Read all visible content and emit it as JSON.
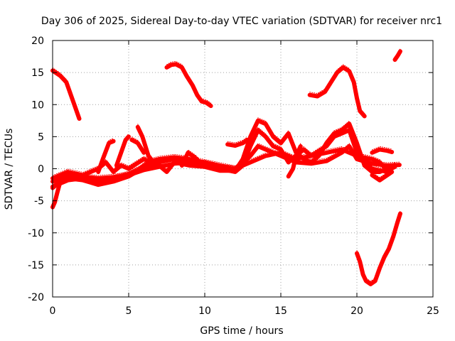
{
  "chart_data": {
    "type": "scatter",
    "title": "Day 306 of 2025, Sidereal Day-to-day VTEC variation (SDTVAR) for receiver nrc1",
    "xlabel": "GPS time / hours",
    "ylabel": "SDTVAR / TECUs",
    "xlim": [
      0,
      25
    ],
    "ylim": [
      -20,
      20
    ],
    "xticks": [
      0,
      5,
      10,
      15,
      20,
      25
    ],
    "yticks": [
      -20,
      -15,
      -10,
      -5,
      0,
      5,
      10,
      15,
      20
    ],
    "xtick_labels": [
      "0",
      "5",
      "10",
      "15",
      "20",
      "25"
    ],
    "ytick_labels": [
      "-20",
      "-15",
      "-10",
      "-5",
      "0",
      "5",
      "10",
      "15",
      "20"
    ],
    "grid": true,
    "marker": "plus",
    "color": "#ff0000",
    "series": [
      {
        "name": "arc-high-early",
        "points": [
          [
            0,
            15.3
          ],
          [
            0.5,
            14.5
          ],
          [
            0.9,
            13.5
          ],
          [
            1.2,
            11.5
          ],
          [
            1.5,
            9.5
          ],
          [
            1.75,
            7.8
          ]
        ]
      },
      {
        "name": "arc-low-start",
        "points": [
          [
            0,
            -6.0
          ],
          [
            0.15,
            -5.2
          ],
          [
            0.3,
            -3.8
          ],
          [
            0.45,
            -2.5
          ],
          [
            0.6,
            -1.5
          ],
          [
            0.8,
            -1.0
          ],
          [
            1.0,
            -0.8
          ]
        ]
      },
      {
        "name": "arc-noon-high",
        "points": [
          [
            7.5,
            15.8
          ],
          [
            7.8,
            16.2
          ],
          [
            8.1,
            16.3
          ],
          [
            8.5,
            15.8
          ],
          [
            8.8,
            14.5
          ],
          [
            9.2,
            13.0
          ],
          [
            9.5,
            11.5
          ],
          [
            9.8,
            10.5
          ],
          [
            10.1,
            10.3
          ],
          [
            10.4,
            9.8
          ]
        ]
      },
      {
        "name": "arc-late-high",
        "points": [
          [
            16.9,
            11.5
          ],
          [
            17.4,
            11.3
          ],
          [
            17.9,
            12.0
          ],
          [
            18.3,
            13.5
          ],
          [
            18.7,
            15.0
          ],
          [
            19.1,
            15.8
          ],
          [
            19.5,
            15.2
          ],
          [
            19.8,
            13.5
          ],
          [
            20.0,
            11.0
          ],
          [
            20.2,
            9.0
          ],
          [
            20.5,
            8.2
          ]
        ]
      },
      {
        "name": "arc-end-high",
        "points": [
          [
            22.5,
            17.0
          ],
          [
            22.7,
            17.7
          ],
          [
            22.85,
            18.3
          ]
        ]
      },
      {
        "name": "arc-low-late",
        "points": [
          [
            20.0,
            -13.2
          ],
          [
            20.2,
            -14.5
          ],
          [
            20.4,
            -16.5
          ],
          [
            20.6,
            -17.5
          ],
          [
            20.9,
            -18.0
          ],
          [
            21.2,
            -17.5
          ],
          [
            21.5,
            -15.5
          ],
          [
            21.8,
            -13.8
          ],
          [
            22.1,
            -12.5
          ],
          [
            22.4,
            -10.5
          ],
          [
            22.65,
            -8.5
          ],
          [
            22.85,
            -7.0
          ]
        ]
      },
      {
        "name": "band-a",
        "points": [
          [
            0,
            -2.0
          ],
          [
            1,
            -1.0
          ],
          [
            2,
            -1.2
          ],
          [
            3,
            -1.5
          ],
          [
            4,
            -1.3
          ],
          [
            5,
            -1.0
          ],
          [
            6,
            -0.2
          ],
          [
            7,
            0.3
          ],
          [
            8,
            0.8
          ],
          [
            9,
            1.0
          ],
          [
            10,
            0.9
          ],
          [
            11,
            0.3
          ],
          [
            12,
            0.0
          ],
          [
            12.5,
            0.8
          ],
          [
            13,
            2.0
          ],
          [
            13.5,
            3.5
          ],
          [
            14,
            3.0
          ],
          [
            14.5,
            2.5
          ],
          [
            15,
            2.0
          ],
          [
            15.5,
            1.5
          ],
          [
            16,
            1.0
          ],
          [
            17,
            0.8
          ],
          [
            18,
            1.2
          ],
          [
            19,
            2.5
          ],
          [
            19.5,
            3.5
          ],
          [
            20,
            1.5
          ],
          [
            21,
            0.8
          ],
          [
            22,
            0.5
          ],
          [
            22.8,
            0.6
          ]
        ]
      },
      {
        "name": "band-b",
        "points": [
          [
            0,
            -2.8
          ],
          [
            1,
            -1.8
          ],
          [
            2,
            -1.5
          ],
          [
            3,
            -2.0
          ],
          [
            4,
            -1.5
          ],
          [
            5,
            -0.8
          ],
          [
            6,
            0.3
          ],
          [
            7,
            1.0
          ],
          [
            8,
            1.5
          ],
          [
            9,
            1.2
          ],
          [
            10,
            0.7
          ],
          [
            11,
            0.0
          ],
          [
            12,
            -0.5
          ],
          [
            12.5,
            0.5
          ],
          [
            13,
            3.5
          ],
          [
            13.5,
            6.0
          ],
          [
            14,
            5.0
          ],
          [
            14.5,
            3.5
          ],
          [
            15,
            3.0
          ],
          [
            15.5,
            1.0
          ],
          [
            16,
            2.0
          ],
          [
            16.5,
            3.0
          ],
          [
            17,
            2.0
          ],
          [
            18,
            3.5
          ],
          [
            18.5,
            5.0
          ],
          [
            19,
            5.5
          ],
          [
            19.5,
            6.0
          ],
          [
            20,
            2.5
          ],
          [
            20.5,
            1.0
          ],
          [
            21,
            0.0
          ],
          [
            22,
            -0.5
          ],
          [
            22.5,
            0.5
          ]
        ]
      },
      {
        "name": "band-c",
        "points": [
          [
            0,
            -1.5
          ],
          [
            1,
            -0.5
          ],
          [
            2,
            -1.0
          ],
          [
            2.5,
            -0.5
          ],
          [
            3,
            0.0
          ],
          [
            3.5,
            1.0
          ],
          [
            4,
            -0.5
          ],
          [
            4.5,
            0.5
          ],
          [
            5,
            0.0
          ],
          [
            6,
            1.5
          ],
          [
            7,
            0.5
          ],
          [
            7.5,
            -0.5
          ],
          [
            8,
            1.0
          ],
          [
            9,
            0.5
          ],
          [
            10,
            0.3
          ],
          [
            11,
            -0.3
          ],
          [
            12,
            -0.3
          ],
          [
            12.5,
            1.5
          ],
          [
            13,
            5.0
          ],
          [
            13.5,
            7.5
          ],
          [
            14,
            7.0
          ],
          [
            14.5,
            5.0
          ],
          [
            15,
            4.0
          ],
          [
            15.5,
            5.5
          ],
          [
            16,
            2.5
          ],
          [
            16.5,
            1.5
          ],
          [
            17,
            1.0
          ],
          [
            17.5,
            2.0
          ],
          [
            18,
            4.0
          ],
          [
            18.5,
            5.5
          ],
          [
            19,
            6.0
          ],
          [
            19.5,
            7.0
          ],
          [
            20,
            4.0
          ],
          [
            20.5,
            0.5
          ],
          [
            21,
            -0.5
          ],
          [
            21.5,
            -0.5
          ],
          [
            22,
            0.0
          ],
          [
            22.5,
            0.5
          ]
        ]
      },
      {
        "name": "band-d",
        "points": [
          [
            0,
            -3.0
          ],
          [
            0.5,
            -2.0
          ],
          [
            1,
            -1.5
          ],
          [
            2,
            -1.8
          ],
          [
            3,
            -2.5
          ],
          [
            4,
            -2.0
          ],
          [
            5,
            -1.2
          ],
          [
            5.5,
            -0.5
          ],
          [
            6,
            0.5
          ],
          [
            6.5,
            1.2
          ],
          [
            7,
            1.5
          ],
          [
            8,
            1.8
          ],
          [
            9,
            1.5
          ],
          [
            10,
            1.0
          ],
          [
            11,
            0.5
          ],
          [
            12,
            0.0
          ],
          [
            13,
            1.0
          ],
          [
            14,
            2.0
          ],
          [
            15,
            2.5
          ],
          [
            16,
            1.5
          ],
          [
            17,
            2.0
          ],
          [
            18,
            2.5
          ],
          [
            19,
            3.0
          ],
          [
            20,
            2.0
          ],
          [
            21,
            1.5
          ],
          [
            21.5,
            1.0
          ],
          [
            22,
            -0.3
          ],
          [
            22.5,
            0.3
          ]
        ]
      },
      {
        "name": "spike-early",
        "points": [
          [
            3.0,
            -0.5
          ],
          [
            3.3,
            1.5
          ],
          [
            3.7,
            4.0
          ],
          [
            4.0,
            4.3
          ]
        ]
      },
      {
        "name": "spike-early-2",
        "points": [
          [
            4.2,
            0.5
          ],
          [
            4.5,
            2.5
          ],
          [
            4.8,
            4.5
          ],
          [
            5.0,
            5.0
          ]
        ]
      },
      {
        "name": "spike-mid",
        "points": [
          [
            5.6,
            6.5
          ],
          [
            5.9,
            5.0
          ],
          [
            6.3,
            2.0
          ],
          [
            6.8,
            0.5
          ]
        ]
      },
      {
        "name": "spike-mid-2",
        "points": [
          [
            5.2,
            4.5
          ],
          [
            5.6,
            4.0
          ],
          [
            6.0,
            2.5
          ]
        ]
      },
      {
        "name": "spike-mid-3",
        "points": [
          [
            8.5,
            0.5
          ],
          [
            8.9,
            2.5
          ],
          [
            9.2,
            2.0
          ],
          [
            9.5,
            1.5
          ]
        ]
      },
      {
        "name": "segment-mid",
        "points": [
          [
            11.5,
            3.8
          ],
          [
            12.0,
            3.6
          ],
          [
            12.5,
            4.0
          ],
          [
            12.8,
            4.5
          ]
        ]
      },
      {
        "name": "tail-late",
        "points": [
          [
            21.0,
            2.5
          ],
          [
            21.5,
            3.0
          ],
          [
            22.0,
            2.8
          ],
          [
            22.3,
            2.6
          ]
        ]
      },
      {
        "name": "tail-late-2",
        "points": [
          [
            21.0,
            -1.0
          ],
          [
            21.5,
            -1.8
          ],
          [
            22.0,
            -1.0
          ],
          [
            22.3,
            -0.5
          ]
        ]
      },
      {
        "name": "spike-sep",
        "points": [
          [
            15.5,
            -1.2
          ],
          [
            15.8,
            0.0
          ],
          [
            16.0,
            2.0
          ],
          [
            16.3,
            3.5
          ]
        ]
      }
    ]
  }
}
